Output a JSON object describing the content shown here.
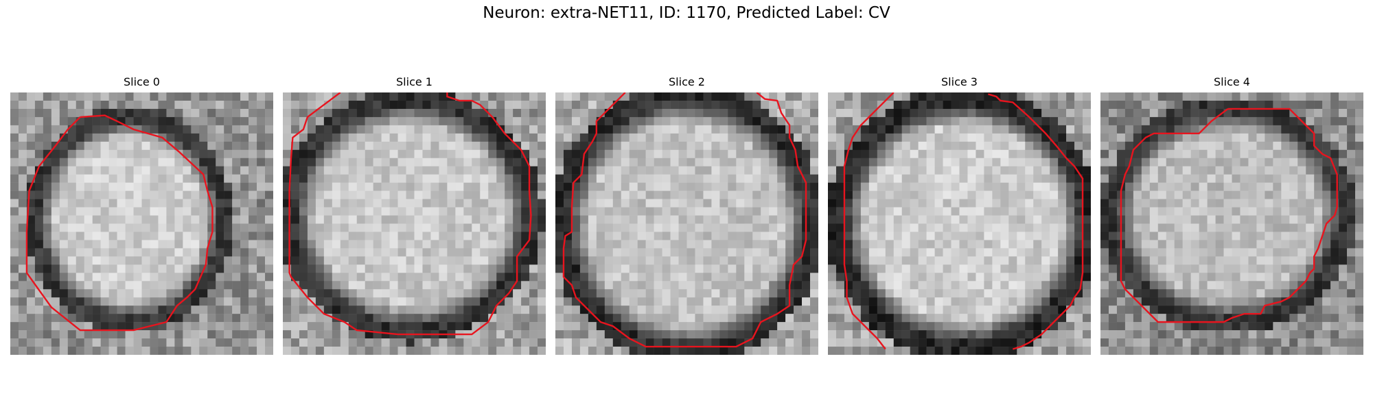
{
  "figure": {
    "title": "Neuron: extra-NET11, ID: 1170, Predicted Label: CV"
  },
  "panels": [
    {
      "title": "Slice 0"
    },
    {
      "title": "Slice 1"
    },
    {
      "title": "Slice 2"
    },
    {
      "title": "Slice 3"
    },
    {
      "title": "Slice 4"
    }
  ],
  "colors": {
    "contour": "#e8141e",
    "background": "#ffffff"
  },
  "image_style": "grayscale EM crop, 32x32 pixels, bright nucleus with dark membrane ring"
}
